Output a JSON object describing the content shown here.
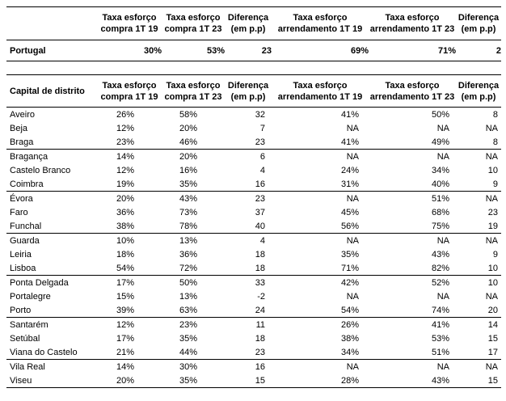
{
  "header": {
    "corner_label": "",
    "district_label": "Capital de distrito",
    "cols": [
      {
        "l1": "Taxa esforço",
        "l2": "compra 1T 19"
      },
      {
        "l1": "Taxa esforço",
        "l2": "compra 1T 23"
      },
      {
        "l1": "Diferença",
        "l2": "(em p.p)"
      },
      {
        "l1": "Taxa esforço",
        "l2": "arrendamento 1T 19"
      },
      {
        "l1": "Taxa esforço",
        "l2": "arrendamento 1T 23"
      },
      {
        "l1": "Diferença",
        "l2": "(em p.p)"
      }
    ]
  },
  "portugal": {
    "name": "Portugal",
    "values": [
      "30%",
      "53%",
      "23",
      "69%",
      "71%",
      "2"
    ]
  },
  "districts": [
    {
      "name": "Aveiro",
      "values": [
        "26%",
        "58%",
        "32",
        "41%",
        "50%",
        "8"
      ],
      "sep": false
    },
    {
      "name": "Beja",
      "values": [
        "12%",
        "20%",
        "7",
        "NA",
        "NA",
        "NA"
      ],
      "sep": false
    },
    {
      "name": "Braga",
      "values": [
        "23%",
        "46%",
        "23",
        "41%",
        "49%",
        "8"
      ],
      "sep": true
    },
    {
      "name": "Bragança",
      "values": [
        "14%",
        "20%",
        "6",
        "NA",
        "NA",
        "NA"
      ],
      "sep": false
    },
    {
      "name": "Castelo Branco",
      "values": [
        "12%",
        "16%",
        "4",
        "24%",
        "34%",
        "10"
      ],
      "sep": false
    },
    {
      "name": "Coimbra",
      "values": [
        "19%",
        "35%",
        "16",
        "31%",
        "40%",
        "9"
      ],
      "sep": true
    },
    {
      "name": "Évora",
      "values": [
        "20%",
        "43%",
        "23",
        "NA",
        "51%",
        "NA"
      ],
      "sep": false
    },
    {
      "name": "Faro",
      "values": [
        "36%",
        "73%",
        "37",
        "45%",
        "68%",
        "23"
      ],
      "sep": false
    },
    {
      "name": "Funchal",
      "values": [
        "38%",
        "78%",
        "40",
        "56%",
        "75%",
        "19"
      ],
      "sep": true
    },
    {
      "name": "Guarda",
      "values": [
        "10%",
        "13%",
        "4",
        "NA",
        "NA",
        "NA"
      ],
      "sep": false
    },
    {
      "name": "Leiria",
      "values": [
        "18%",
        "36%",
        "18",
        "35%",
        "43%",
        "9"
      ],
      "sep": false
    },
    {
      "name": "Lisboa",
      "values": [
        "54%",
        "72%",
        "18",
        "71%",
        "82%",
        "10"
      ],
      "sep": true
    },
    {
      "name": "Ponta Delgada",
      "values": [
        "17%",
        "50%",
        "33",
        "42%",
        "52%",
        "10"
      ],
      "sep": false
    },
    {
      "name": "Portalegre",
      "values": [
        "15%",
        "13%",
        "-2",
        "NA",
        "NA",
        "NA"
      ],
      "sep": false
    },
    {
      "name": "Porto",
      "values": [
        "39%",
        "63%",
        "24",
        "54%",
        "74%",
        "20"
      ],
      "sep": true
    },
    {
      "name": "Santarém",
      "values": [
        "12%",
        "23%",
        "11",
        "26%",
        "41%",
        "14"
      ],
      "sep": false
    },
    {
      "name": "Setúbal",
      "values": [
        "17%",
        "35%",
        "18",
        "38%",
        "53%",
        "15"
      ],
      "sep": false
    },
    {
      "name": "Viana do Castelo",
      "values": [
        "21%",
        "44%",
        "23",
        "34%",
        "51%",
        "17"
      ],
      "sep": true
    },
    {
      "name": "Vila Real",
      "values": [
        "14%",
        "30%",
        "16",
        "NA",
        "NA",
        "NA"
      ],
      "sep": false
    },
    {
      "name": "Viseu",
      "values": [
        "20%",
        "35%",
        "15",
        "28%",
        "43%",
        "15"
      ],
      "sep": true
    }
  ]
}
